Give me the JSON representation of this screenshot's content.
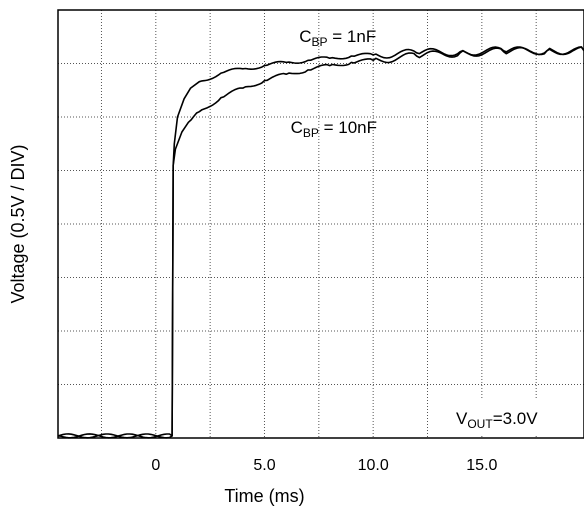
{
  "chart_data": {
    "type": "line",
    "xlabel": "Time (ms)",
    "ylabel": "Voltage (0.5V / DIV)",
    "x_ticks": [
      "0",
      "5.0",
      "10.0",
      "15.0"
    ],
    "xlim": [
      -4.5,
      19.7
    ],
    "ylim": [
      0,
      4
    ],
    "y_unit_per_div": 0.5,
    "grid": true,
    "annotation": {
      "text": "V",
      "sub": "OUT",
      "tail": "=3.0V"
    },
    "series": [
      {
        "name": "CBP = 1nF",
        "label_main": "C",
        "label_sub": "BP",
        "label_tail": " = 1nF",
        "x": [
          -4.5,
          0.75,
          0.8,
          0.85,
          1.0,
          1.3,
          1.6,
          2.0,
          3.0,
          4.0,
          5.0,
          6.0,
          7.0,
          8.0,
          9.0,
          10.0,
          12.0,
          14.0,
          16.0,
          18.0,
          19.7
        ],
        "y": [
          0.02,
          0.02,
          2.55,
          2.75,
          3.0,
          3.17,
          3.27,
          3.33,
          3.41,
          3.45,
          3.48,
          3.51,
          3.53,
          3.55,
          3.57,
          3.58,
          3.6,
          3.61,
          3.62,
          3.62,
          3.62
        ]
      },
      {
        "name": "CBP = 10nF",
        "label_main": "C",
        "label_sub": "BP",
        "label_tail": " = 10nF",
        "x": [
          -4.5,
          0.75,
          0.8,
          0.9,
          1.2,
          1.5,
          2.0,
          3.0,
          4.0,
          5.0,
          6.0,
          7.0,
          8.0,
          9.0,
          10.0,
          12.0,
          14.0,
          16.0,
          18.0,
          19.7
        ],
        "y": [
          0.02,
          0.02,
          2.55,
          2.7,
          2.86,
          2.95,
          3.05,
          3.18,
          3.27,
          3.34,
          3.4,
          3.44,
          3.48,
          3.51,
          3.53,
          3.57,
          3.6,
          3.61,
          3.62,
          3.62
        ]
      }
    ]
  }
}
